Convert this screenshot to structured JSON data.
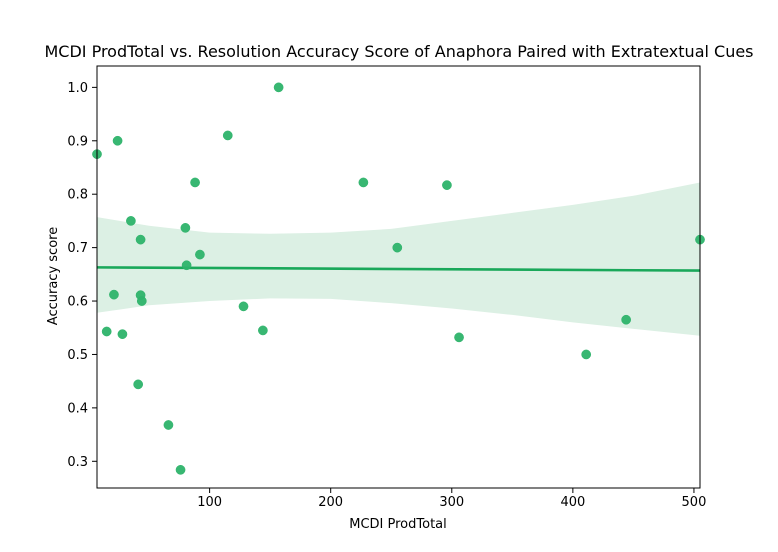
{
  "chart_data": {
    "type": "scatter",
    "title": "MCDI ProdTotal vs. Resolution Accuracy Score of Anaphora Paired with Extratextual Cues",
    "xlabel": "MCDI ProdTotal",
    "ylabel": "Accuracy score",
    "xlim": [
      7,
      505
    ],
    "ylim": [
      0.25,
      1.04
    ],
    "xticks": [
      100,
      200,
      300,
      400,
      500
    ],
    "yticks": [
      0.3,
      0.4,
      0.5,
      0.6,
      0.7,
      0.8,
      0.9,
      1.0
    ],
    "xtick_labels": [
      "100",
      "200",
      "300",
      "400",
      "500"
    ],
    "ytick_labels": [
      "0.3",
      "0.4",
      "0.5",
      "0.6",
      "0.7",
      "0.8",
      "0.9",
      "1.0"
    ],
    "grid": false,
    "point_color": "#2db36a",
    "line_color": "#1aa85a",
    "band_color": "#dcf0e4",
    "points": [
      {
        "x": 7,
        "y": 0.875
      },
      {
        "x": 15,
        "y": 0.543
      },
      {
        "x": 21,
        "y": 0.612
      },
      {
        "x": 24,
        "y": 0.9
      },
      {
        "x": 28,
        "y": 0.538
      },
      {
        "x": 35,
        "y": 0.75
      },
      {
        "x": 41,
        "y": 0.444
      },
      {
        "x": 43,
        "y": 0.715
      },
      {
        "x": 43,
        "y": 0.611
      },
      {
        "x": 44,
        "y": 0.6
      },
      {
        "x": 66,
        "y": 0.368
      },
      {
        "x": 76,
        "y": 0.284
      },
      {
        "x": 80,
        "y": 0.737
      },
      {
        "x": 81,
        "y": 0.667
      },
      {
        "x": 88,
        "y": 0.822
      },
      {
        "x": 92,
        "y": 0.687
      },
      {
        "x": 115,
        "y": 0.91
      },
      {
        "x": 128,
        "y": 0.59
      },
      {
        "x": 144,
        "y": 0.545
      },
      {
        "x": 157,
        "y": 1.0
      },
      {
        "x": 227,
        "y": 0.822
      },
      {
        "x": 255,
        "y": 0.7
      },
      {
        "x": 296,
        "y": 0.817
      },
      {
        "x": 306,
        "y": 0.532
      },
      {
        "x": 411,
        "y": 0.5
      },
      {
        "x": 444,
        "y": 0.565
      },
      {
        "x": 505,
        "y": 0.715
      }
    ],
    "regression": {
      "x": [
        7,
        505
      ],
      "y": [
        0.663,
        0.657
      ]
    },
    "confidence_band": {
      "x": [
        7,
        50,
        100,
        150,
        200,
        250,
        300,
        350,
        400,
        450,
        505
      ],
      "upper": [
        0.757,
        0.741,
        0.728,
        0.726,
        0.728,
        0.735,
        0.75,
        0.765,
        0.78,
        0.797,
        0.822
      ],
      "lower": [
        0.578,
        0.592,
        0.6,
        0.605,
        0.604,
        0.596,
        0.586,
        0.574,
        0.56,
        0.548,
        0.535
      ]
    }
  }
}
